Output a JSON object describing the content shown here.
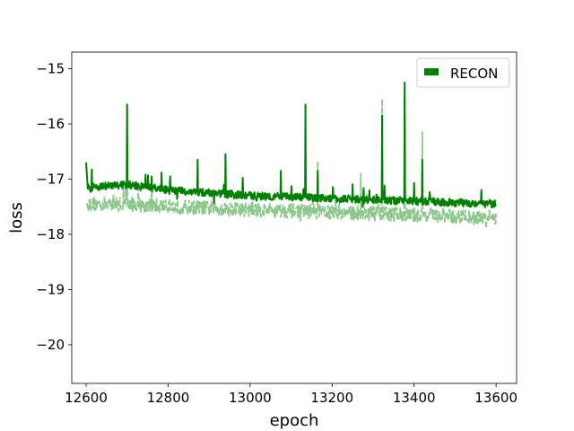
{
  "chart_data": {
    "type": "line",
    "title": "",
    "xlabel": "epoch",
    "ylabel": "loss",
    "xlim": [
      12565,
      13650
    ],
    "ylim": [
      -20.7,
      -14.7
    ],
    "xticks": [
      12600,
      12800,
      13000,
      13200,
      13400,
      13600
    ],
    "xtick_labels": [
      "12600",
      "12800",
      "13000",
      "13200",
      "13400",
      "13600"
    ],
    "yticks": [
      -15,
      -16,
      -17,
      -18,
      -19,
      -20
    ],
    "ytick_labels": [
      "−15",
      "−16",
      "−17",
      "−18",
      "−19",
      "−20"
    ],
    "grid": false,
    "legend": {
      "position": "top-right",
      "entries": [
        "RECON"
      ]
    },
    "series": [
      {
        "name": "RECON",
        "style": "solid",
        "color": "#008000",
        "x_range": [
          12600,
          13600
        ],
        "trend": [
          [
            12600,
            -16.7
          ],
          [
            12604,
            -17.15
          ],
          [
            12700,
            -17.1
          ],
          [
            12800,
            -17.2
          ],
          [
            13000,
            -17.3
          ],
          [
            13200,
            -17.35
          ],
          [
            13400,
            -17.4
          ],
          [
            13600,
            -17.45
          ]
        ],
        "spikes": [
          [
            12700,
            -15.65
          ],
          [
            12760,
            -16.95
          ],
          [
            12805,
            -16.95
          ],
          [
            12872,
            -16.65
          ],
          [
            12940,
            -16.55
          ],
          [
            13075,
            -16.85
          ],
          [
            13135,
            -15.65
          ],
          [
            13165,
            -16.85
          ],
          [
            13322,
            -15.85
          ],
          [
            13377,
            -15.25
          ],
          [
            13420,
            -16.65
          ]
        ]
      },
      {
        "name": "",
        "style": "dashed",
        "color": "#8cc78c",
        "x_range": [
          12600,
          13600
        ],
        "trend": [
          [
            12600,
            -17.45
          ],
          [
            12700,
            -17.45
          ],
          [
            12800,
            -17.5
          ],
          [
            13000,
            -17.55
          ],
          [
            13200,
            -17.6
          ],
          [
            13400,
            -17.65
          ],
          [
            13600,
            -17.7
          ]
        ],
        "spikes": [
          [
            12700,
            -16.95
          ],
          [
            12760,
            -16.95
          ],
          [
            13165,
            -16.7
          ],
          [
            13270,
            -16.9
          ],
          [
            13322,
            -15.55
          ],
          [
            13377,
            -15.35
          ],
          [
            13420,
            -16.15
          ]
        ]
      }
    ]
  }
}
